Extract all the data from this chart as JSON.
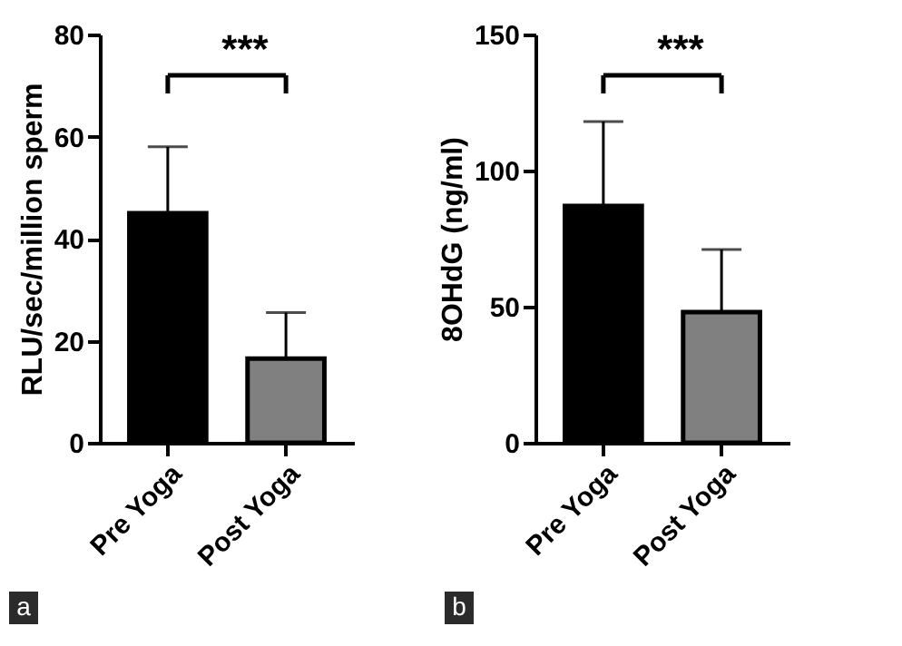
{
  "chart_data": [
    {
      "type": "bar",
      "ylabel": "RLU/sec/million sperm",
      "categories": [
        "Pre Yoga",
        "Post Yoga"
      ],
      "values": [
        45,
        16.5
      ],
      "colors": [
        "#000000",
        "#808080"
      ],
      "errors": [
        [
          45,
          58
        ],
        [
          16.5,
          25.5
        ]
      ],
      "ylim": [
        0,
        80
      ],
      "yticks": [
        0,
        20,
        40,
        60,
        80
      ],
      "grid": false,
      "annotations": [
        "***",
        "a"
      ]
    },
    {
      "type": "bar",
      "ylabel": "8OHdG (ng/ml)",
      "categories": [
        "Pre Yoga",
        "Post Yoga"
      ],
      "values": [
        87,
        48
      ],
      "colors": [
        "#000000",
        "#808080"
      ],
      "errors": [
        [
          87,
          118
        ],
        [
          48,
          71
        ]
      ],
      "ylim": [
        0,
        150
      ],
      "yticks": [
        0,
        50,
        100,
        150
      ],
      "grid": false,
      "annotations": [
        "***",
        "b"
      ]
    }
  ]
}
